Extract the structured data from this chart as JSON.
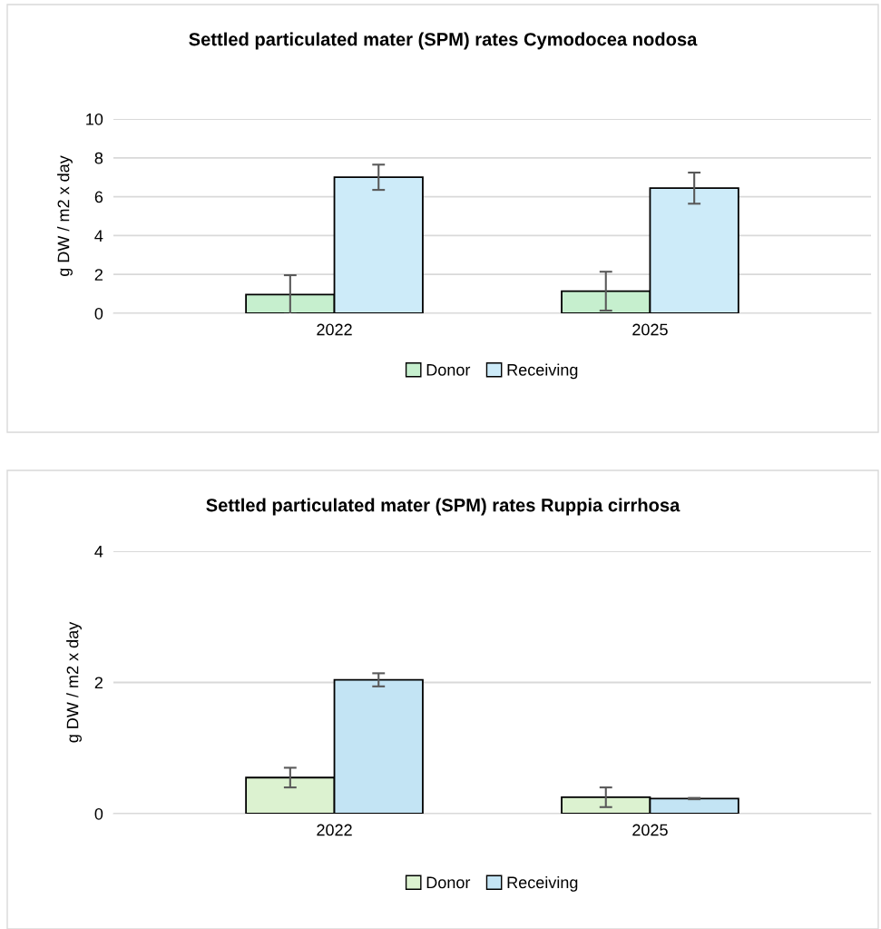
{
  "chart_data": [
    {
      "type": "bar",
      "title": "Settled particulated mater (SPM) rates Cymodocea nodosa",
      "ylabel": "g DW / m2 x day",
      "categories": [
        "2022",
        "2025"
      ],
      "series": [
        {
          "name": "Donor",
          "color": "#c6efce",
          "values": [
            0.96,
            1.14
          ],
          "errors": [
            1.0,
            1.0
          ]
        },
        {
          "name": "Receiving",
          "color": "#cdebf9",
          "values": [
            7.0,
            6.44
          ],
          "errors": [
            0.65,
            0.8
          ]
        }
      ],
      "ylim": [
        0,
        10
      ],
      "yticks": [
        0,
        2,
        4,
        6,
        8,
        10
      ],
      "grid": "y",
      "legend": "bottom"
    },
    {
      "type": "bar",
      "title": "Settled particulated mater (SPM) rates Ruppia cirrhosa",
      "ylabel": "g DW / m2 x day",
      "categories": [
        "2022",
        "2025"
      ],
      "series": [
        {
          "name": "Donor",
          "color": "#dcf2d0",
          "values": [
            0.55,
            0.25
          ],
          "errors": [
            0.15,
            0.15
          ]
        },
        {
          "name": "Receiving",
          "color": "#c3e4f4",
          "values": [
            2.04,
            0.23
          ],
          "errors": [
            0.1,
            0.01
          ]
        }
      ],
      "ylim": [
        0,
        4
      ],
      "yticks": [
        0,
        2,
        4
      ],
      "grid": "y",
      "legend": "bottom"
    }
  ]
}
